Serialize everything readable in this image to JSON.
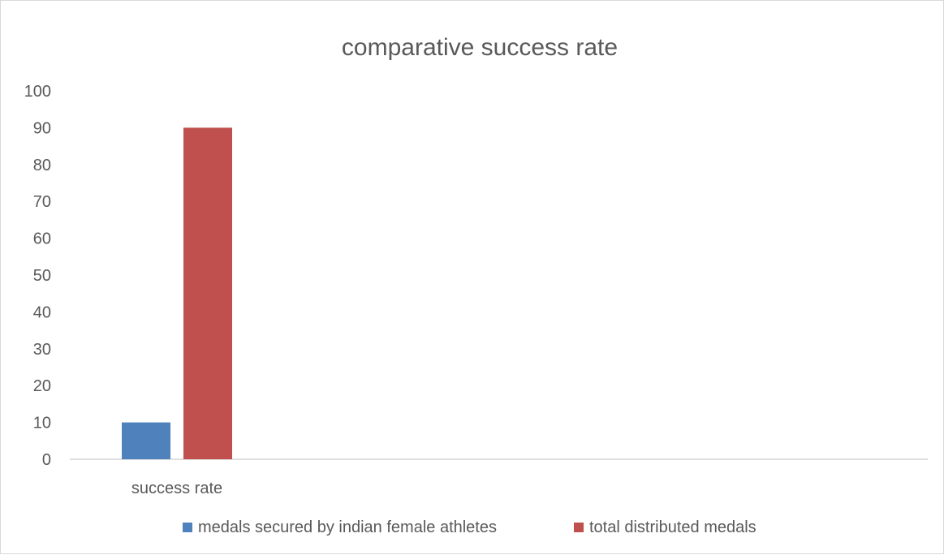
{
  "chart_data": {
    "type": "bar",
    "title": "comparative success rate",
    "categories": [
      "success rate"
    ],
    "series": [
      {
        "name": "medals secured by indian female athletes",
        "values": [
          10
        ],
        "color": "#4f81bd"
      },
      {
        "name": "total distributed medals",
        "values": [
          90
        ],
        "color": "#c0504d"
      }
    ],
    "ylim": [
      0,
      100
    ],
    "yticks": [
      "0",
      "10",
      "20",
      "30",
      "40",
      "50",
      "60",
      "70",
      "80",
      "90",
      "100"
    ],
    "grid": false,
    "legend_position": "bottom",
    "xlabel": "",
    "ylabel": ""
  }
}
